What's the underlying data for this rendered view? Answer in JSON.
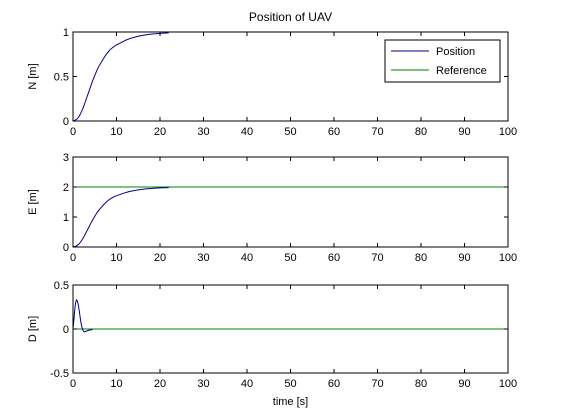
{
  "chart_data": [
    {
      "type": "line",
      "title": "Position of UAV",
      "xlabel": "",
      "ylabel": "N [m]",
      "xlim": [
        0,
        100
      ],
      "ylim": [
        0,
        1
      ],
      "xticks": [
        "0",
        "10",
        "20",
        "30",
        "40",
        "50",
        "60",
        "70",
        "80",
        "90",
        "100"
      ],
      "yticks": [
        "0",
        "0.5",
        "1"
      ],
      "legend": {
        "placement": "top-right",
        "entries": [
          "Position",
          "Reference"
        ]
      },
      "series": [
        {
          "name": "Position",
          "color": "#00008b",
          "x": [
            0,
            0.5,
            1,
            1.5,
            2,
            2.5,
            3,
            3.5,
            4,
            4.5,
            5,
            5.5,
            6,
            6.5,
            7,
            7.5,
            8,
            8.5,
            9,
            9.5,
            10,
            11,
            12,
            13,
            14,
            15,
            16,
            17,
            18,
            19,
            20,
            21,
            22
          ],
          "y": [
            0,
            0.01,
            0.025,
            0.06,
            0.11,
            0.17,
            0.24,
            0.31,
            0.38,
            0.45,
            0.51,
            0.57,
            0.62,
            0.66,
            0.7,
            0.74,
            0.77,
            0.8,
            0.82,
            0.84,
            0.855,
            0.88,
            0.905,
            0.925,
            0.94,
            0.952,
            0.962,
            0.97,
            0.976,
            0.981,
            0.985,
            0.988,
            0.99
          ]
        },
        {
          "name": "Reference",
          "color": "#008000",
          "x": [
            0,
            100
          ],
          "y": [
            1,
            1
          ]
        }
      ]
    },
    {
      "type": "line",
      "title": "",
      "xlabel": "",
      "ylabel": "E [m]",
      "xlim": [
        0,
        100
      ],
      "ylim": [
        0,
        3
      ],
      "xticks": [
        "0",
        "10",
        "20",
        "30",
        "40",
        "50",
        "60",
        "70",
        "80",
        "90",
        "100"
      ],
      "yticks": [
        "0",
        "1",
        "2",
        "3"
      ],
      "series": [
        {
          "color": "#00008b",
          "x": [
            0,
            0.5,
            1,
            1.5,
            2,
            2.5,
            3,
            3.5,
            4,
            4.5,
            5,
            5.5,
            6,
            6.5,
            7,
            7.5,
            8,
            8.5,
            9,
            9.5,
            10,
            11,
            12,
            13,
            14,
            15,
            16,
            17,
            18,
            19,
            20,
            21,
            22
          ],
          "y": [
            0,
            0.02,
            0.05,
            0.12,
            0.22,
            0.34,
            0.48,
            0.62,
            0.76,
            0.9,
            1.02,
            1.14,
            1.24,
            1.32,
            1.4,
            1.48,
            1.54,
            1.6,
            1.64,
            1.68,
            1.71,
            1.76,
            1.81,
            1.85,
            1.88,
            1.905,
            1.925,
            1.94,
            1.952,
            1.962,
            1.97,
            1.976,
            1.98
          ]
        },
        {
          "color": "#008000",
          "x": [
            0,
            100
          ],
          "y": [
            2,
            2
          ]
        }
      ]
    },
    {
      "type": "line",
      "title": "",
      "xlabel": "time [s]",
      "ylabel": "D [m]",
      "xlim": [
        0,
        100
      ],
      "ylim": [
        -0.5,
        0.5
      ],
      "xticks": [
        "0",
        "10",
        "20",
        "30",
        "40",
        "50",
        "60",
        "70",
        "80",
        "90",
        "100"
      ],
      "yticks": [
        "-0.5",
        "0",
        "0.5"
      ],
      "series": [
        {
          "color": "#00008b",
          "x": [
            0,
            0.2,
            0.4,
            0.6,
            0.8,
            1.0,
            1.2,
            1.4,
            1.6,
            1.8,
            2.0,
            2.2,
            2.4,
            2.6,
            2.8,
            3.0,
            3.3,
            3.6,
            4.0,
            4.5
          ],
          "y": [
            0,
            0.1,
            0.22,
            0.3,
            0.33,
            0.32,
            0.28,
            0.22,
            0.15,
            0.08,
            0.03,
            -0.005,
            -0.025,
            -0.032,
            -0.03,
            -0.026,
            -0.02,
            -0.014,
            -0.01,
            -0.008
          ]
        },
        {
          "color": "#008000",
          "x": [
            0,
            100
          ],
          "y": [
            0,
            0
          ]
        }
      ]
    }
  ]
}
